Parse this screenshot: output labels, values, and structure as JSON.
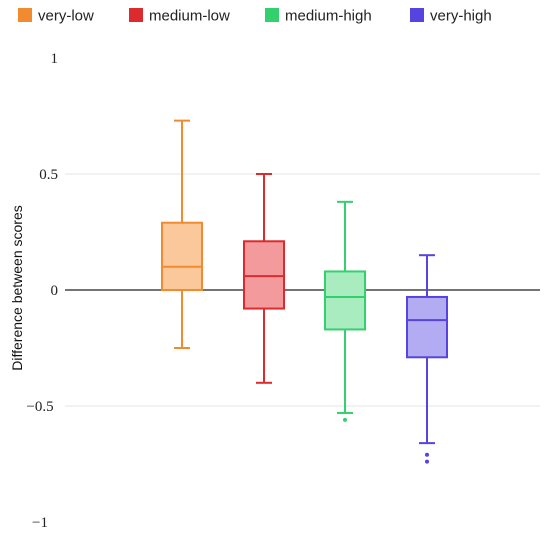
{
  "chart_data": {
    "type": "boxplot",
    "title": "",
    "xlabel": "",
    "ylabel": "Difference between scores",
    "ylim": [
      -1,
      1
    ],
    "yticks": [
      1,
      0.5,
      0,
      -0.5,
      -1
    ],
    "ytick_labels": [
      "1",
      "0.5",
      "0",
      "−0.5",
      "−1"
    ],
    "grid": true,
    "zero_line": true,
    "legend_position": "top",
    "series": [
      {
        "name": "very-low",
        "color": "#f28a30",
        "fill": "#fbc89b",
        "whisker_low": -0.25,
        "q1": 0.0,
        "median": 0.1,
        "q3": 0.29,
        "whisker_high": 0.73,
        "outliers": []
      },
      {
        "name": "medium-low",
        "color": "#dd2a2f",
        "fill": "#f29a9c",
        "whisker_low": -0.4,
        "q1": -0.08,
        "median": 0.06,
        "q3": 0.21,
        "whisker_high": 0.5,
        "outliers": []
      },
      {
        "name": "medium-high",
        "color": "#33d16d",
        "fill": "#a8ecc0",
        "whisker_low": -0.53,
        "q1": -0.17,
        "median": -0.03,
        "q3": 0.08,
        "whisker_high": 0.38,
        "outliers": [
          -0.56
        ]
      },
      {
        "name": "very-high",
        "color": "#5544e0",
        "fill": "#b4acf2",
        "whisker_low": -0.66,
        "q1": -0.29,
        "median": -0.13,
        "q3": -0.03,
        "whisker_high": 0.15,
        "outliers": [
          -0.71,
          -0.74
        ]
      }
    ]
  }
}
